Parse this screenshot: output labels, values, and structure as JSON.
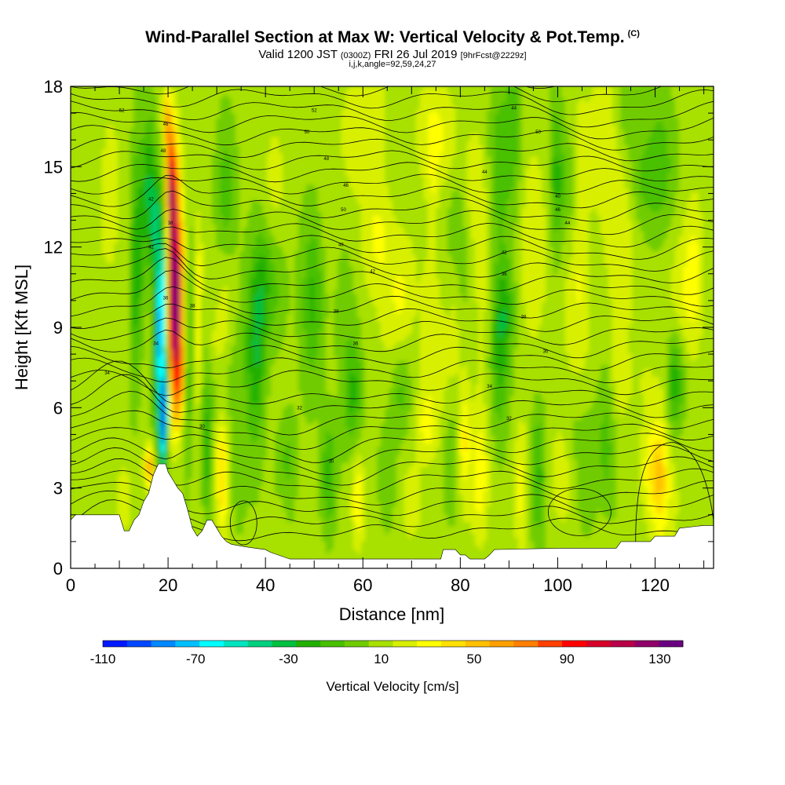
{
  "header": {
    "title": "Wind-Parallel Section at Max W: Vertical Velocity & Pot.Temp.",
    "copyright": "(C)",
    "valid_prefix": "Valid 1200 JST",
    "valid_utc": "(0300Z)",
    "valid_date": "FRI 26 Jul 2019",
    "forecast": "[9hrFcst@2229z]",
    "indices": "i,j,k,angle=92,59,24,27"
  },
  "colors": {
    "plot_background": "#8bd400",
    "terrain": "#ffffff",
    "contour": "#000000",
    "palette": [
      "#0018ff",
      "#0048ff",
      "#0088ff",
      "#00bfff",
      "#00ffff",
      "#00e5c0",
      "#00d080",
      "#00c040",
      "#22b000",
      "#48c000",
      "#6fcc00",
      "#a8e000",
      "#d8f000",
      "#ffff00",
      "#ffe000",
      "#ffc000",
      "#ffa000",
      "#ff7f00",
      "#ff4000",
      "#ff0000",
      "#d80028",
      "#b80048",
      "#900068",
      "#6a0080"
    ]
  },
  "chart_data": {
    "type": "heatmap",
    "title": "Wind-Parallel Section at Max W: Vertical Velocity & Pot.Temp.",
    "xlabel": "Distance [nm]",
    "ylabel": "Height [Kft MSL]",
    "xlim": [
      0,
      132
    ],
    "ylim": [
      0,
      18
    ],
    "x_ticks": [
      "0",
      "20",
      "40",
      "60",
      "80",
      "100",
      "120"
    ],
    "x_tick_values": [
      0,
      20,
      40,
      60,
      80,
      100,
      120
    ],
    "y_ticks": [
      "0",
      "3",
      "6",
      "9",
      "12",
      "15",
      "18"
    ],
    "y_tick_values": [
      0,
      3,
      6,
      9,
      12,
      15,
      18
    ],
    "colorbar": {
      "label": "Vertical Velocity [cm/s]",
      "min": -110,
      "max": 130,
      "step": 10,
      "tick_labels": [
        "-110",
        "-70",
        "-30",
        "10",
        "50",
        "90",
        "130"
      ],
      "tick_values": [
        -110,
        -70,
        -30,
        10,
        50,
        90,
        130
      ]
    },
    "features": [
      {
        "name": "updraft",
        "x": 21,
        "y_range": [
          4,
          17.5
        ],
        "max_value": 100
      },
      {
        "name": "downdraft",
        "x": 18.5,
        "y_range": [
          3.5,
          11
        ],
        "min_value": -100
      },
      {
        "name": "updraft",
        "x": 26,
        "y_range": [
          2,
          12
        ],
        "max_value": 30
      },
      {
        "name": "updraft",
        "x": 31,
        "y_range": [
          1,
          6
        ],
        "max_value": 40
      },
      {
        "name": "updraft",
        "x": 16,
        "y_range": [
          3,
          4.5
        ],
        "max_value": 50
      },
      {
        "name": "updraft",
        "x": 68,
        "y_range": [
          7,
          12
        ],
        "max_value": 20
      },
      {
        "name": "updraft",
        "x": 84,
        "y_range": [
          1,
          6
        ],
        "max_value": 25
      },
      {
        "name": "updraft",
        "x": 120,
        "y_range": [
          1,
          5
        ],
        "max_value": 30
      },
      {
        "name": "downdraft",
        "x": 124,
        "y_range": [
          5,
          9
        ],
        "min_value": -30
      },
      {
        "name": "downdraft",
        "x": 96,
        "y_range": [
          2,
          6
        ],
        "min_value": -25
      }
    ],
    "terrain_height": [
      [
        0,
        1.8
      ],
      [
        1,
        2
      ],
      [
        4,
        2
      ],
      [
        7,
        2
      ],
      [
        10,
        2
      ],
      [
        11,
        1.4
      ],
      [
        12,
        1.4
      ],
      [
        13,
        1.8
      ],
      [
        14,
        2
      ],
      [
        15,
        2.5
      ],
      [
        16,
        2.8
      ],
      [
        17,
        3.5
      ],
      [
        18,
        3.9
      ],
      [
        19.5,
        3.9
      ],
      [
        20,
        3.6
      ],
      [
        21,
        3.3
      ],
      [
        22,
        3
      ],
      [
        23,
        2.8
      ],
      [
        24,
        2.2
      ],
      [
        25,
        1.5
      ],
      [
        26,
        1.2
      ],
      [
        27,
        1.4
      ],
      [
        28,
        1.8
      ],
      [
        29,
        1.8
      ],
      [
        30,
        1.5
      ],
      [
        31,
        1.2
      ],
      [
        32,
        1
      ],
      [
        33,
        0.9
      ],
      [
        36,
        0.8
      ],
      [
        38,
        0.75
      ],
      [
        40,
        0.7
      ],
      [
        41,
        0.6
      ],
      [
        45,
        0.35
      ],
      [
        55,
        0.35
      ],
      [
        65,
        0.35
      ],
      [
        76,
        0.35
      ],
      [
        76.5,
        0.7
      ],
      [
        79,
        0.7
      ],
      [
        80,
        0.5
      ],
      [
        81,
        0.5
      ],
      [
        82,
        0.35
      ],
      [
        84,
        0.35
      ],
      [
        85,
        0.35
      ],
      [
        86,
        0.5
      ],
      [
        87,
        0.7
      ],
      [
        100,
        0.75
      ],
      [
        112,
        0.75
      ],
      [
        113,
        1
      ],
      [
        119,
        1
      ],
      [
        120,
        1.2
      ],
      [
        124,
        1.2
      ],
      [
        125,
        1.5
      ],
      [
        130,
        1.6
      ],
      [
        132,
        1.6
      ]
    ],
    "contour_labels": [
      {
        "text": "52",
        "x": 10.5,
        "y": 17.1
      },
      {
        "text": "52",
        "x": 50,
        "y": 17.1
      },
      {
        "text": "50",
        "x": 48.5,
        "y": 16.3
      },
      {
        "text": "44",
        "x": 91,
        "y": 17.2
      },
      {
        "text": "46",
        "x": 19.5,
        "y": 16.6
      },
      {
        "text": "48",
        "x": 19,
        "y": 15.6
      },
      {
        "text": "50",
        "x": 96,
        "y": 16.3
      },
      {
        "text": "48",
        "x": 52.5,
        "y": 15.3
      },
      {
        "text": "44",
        "x": 85,
        "y": 14.8
      },
      {
        "text": "42",
        "x": 16.5,
        "y": 13.8
      },
      {
        "text": "46",
        "x": 56.5,
        "y": 14.3
      },
      {
        "text": "40",
        "x": 100,
        "y": 13.9
      },
      {
        "text": "50",
        "x": 56,
        "y": 13.4
      },
      {
        "text": "46",
        "x": 100,
        "y": 13.4
      },
      {
        "text": "38",
        "x": 20.5,
        "y": 12.9
      },
      {
        "text": "44",
        "x": 102,
        "y": 12.9
      },
      {
        "text": "42",
        "x": 16.5,
        "y": 12.0
      },
      {
        "text": "48",
        "x": 55.5,
        "y": 12.1
      },
      {
        "text": "42",
        "x": 89,
        "y": 11.8
      },
      {
        "text": "42",
        "x": 62,
        "y": 11.1
      },
      {
        "text": "36",
        "x": 89,
        "y": 11.0
      },
      {
        "text": "36",
        "x": 19.5,
        "y": 10.1
      },
      {
        "text": "38",
        "x": 25,
        "y": 9.8
      },
      {
        "text": "38",
        "x": 54.5,
        "y": 9.6
      },
      {
        "text": "38",
        "x": 93,
        "y": 9.4
      },
      {
        "text": "36",
        "x": 58.5,
        "y": 8.4
      },
      {
        "text": "34",
        "x": 17.5,
        "y": 8.4
      },
      {
        "text": "36",
        "x": 97.5,
        "y": 8.1
      },
      {
        "text": "34",
        "x": 7.5,
        "y": 7.3
      },
      {
        "text": "34",
        "x": 86,
        "y": 6.8
      },
      {
        "text": "32",
        "x": 47,
        "y": 6.0
      },
      {
        "text": "32",
        "x": 90,
        "y": 5.6
      },
      {
        "text": "30",
        "x": 27,
        "y": 5.3
      },
      {
        "text": "30",
        "x": 53.5,
        "y": 4.0
      }
    ]
  }
}
